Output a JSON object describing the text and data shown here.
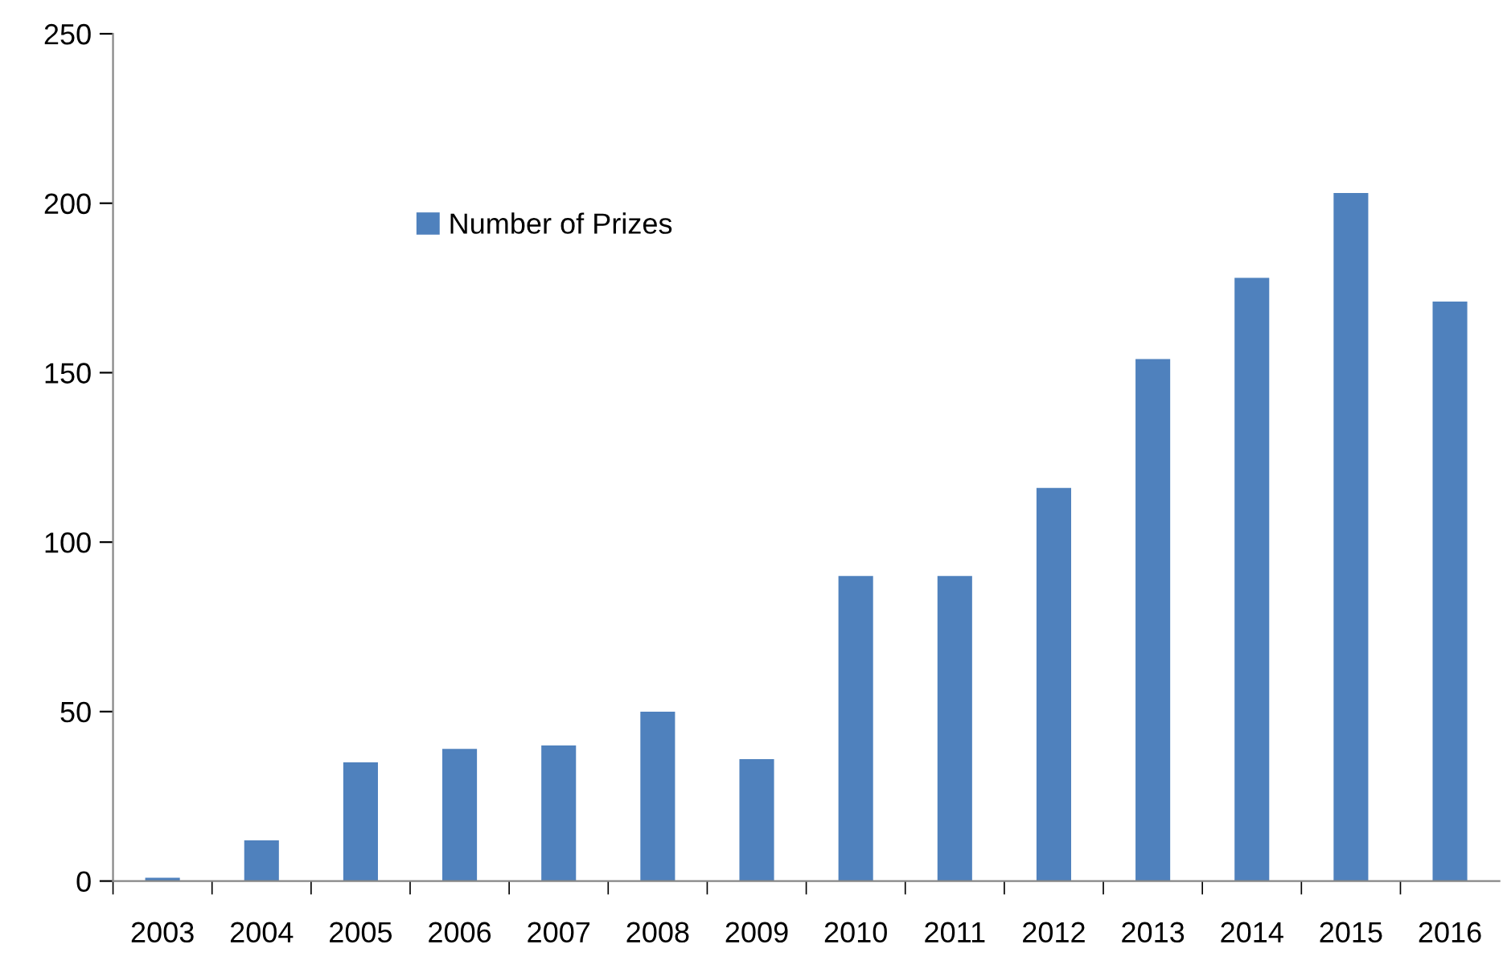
{
  "chart_data": {
    "type": "bar",
    "categories": [
      "2003",
      "2004",
      "2005",
      "2006",
      "2007",
      "2008",
      "2009",
      "2010",
      "2011",
      "2012",
      "2013",
      "2014",
      "2015",
      "2016"
    ],
    "series": [
      {
        "name": "Number of Prizes",
        "color": "#4f81bd",
        "values": [
          1,
          12,
          35,
          39,
          40,
          50,
          36,
          90,
          90,
          116,
          154,
          178,
          203,
          171
        ]
      }
    ],
    "ylim": [
      0,
      250
    ],
    "yticks": [
      0,
      50,
      100,
      150,
      200,
      250
    ],
    "grid": false,
    "legend": "top left"
  }
}
